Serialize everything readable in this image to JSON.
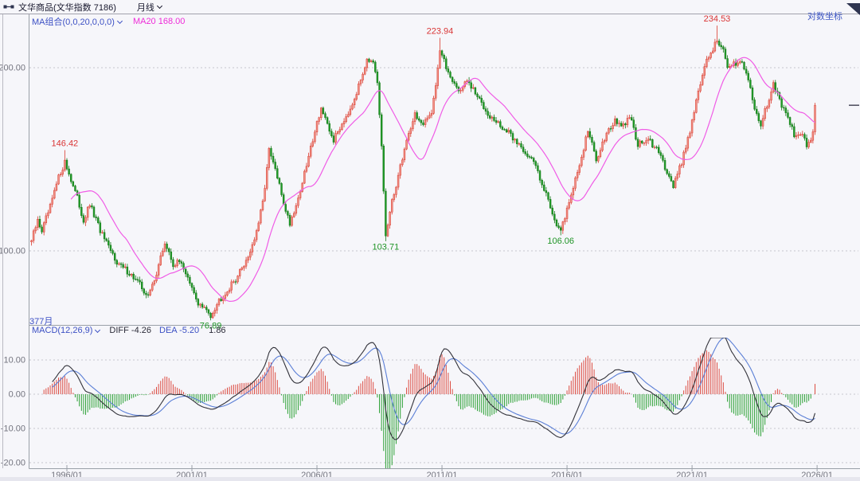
{
  "titlebar": {
    "title": "文华商品(文华指数 7186)",
    "period": "月线"
  },
  "top_right": {
    "scale_label": "对数坐标"
  },
  "main_indicator": {
    "name": "MA组合(0,0,20,0,0,0)",
    "ma20_label": "MA20 168.00"
  },
  "bar_count_label": "377月",
  "macd_row": {
    "name": "MACD(12,26,9)",
    "diff_label": "DIFF -4.26",
    "dea_label": "DEA -5.20",
    "hist_label": "1.86"
  },
  "colors": {
    "up_fill": "#ef9186",
    "up_stroke": "#da3a2e",
    "down_fill": "#1f9c27",
    "down_stroke": "#157718",
    "ma_line": "#f05ce6",
    "diff_line": "#32323a",
    "dea_line": "#5b7fd6",
    "hist_pos": "#dc4b41",
    "hist_neg": "#2aa033",
    "grid": "#c7c7cf",
    "border": "#9aa0a8",
    "tick_text": "#72737e",
    "label_high": "#d93535",
    "label_low": "#1e9425",
    "price_marker": "#4a4a5a"
  },
  "chart_data": {
    "type": "candlestick",
    "symbol": "文华商品(文华指数 7186)",
    "period": "monthly",
    "scale": "log",
    "bars": 377,
    "y_ticks": [
      {
        "value": 200,
        "label": "200.00"
      },
      {
        "value": 100,
        "label": "100.00"
      }
    ],
    "x_ticks": [
      {
        "bar": 17,
        "label": "1996/01"
      },
      {
        "bar": 77,
        "label": "2001/01"
      },
      {
        "bar": 137,
        "label": "2006/01"
      },
      {
        "bar": 197,
        "label": "2011/01"
      },
      {
        "bar": 257,
        "label": "2016/01"
      },
      {
        "bar": 317,
        "label": "2021/01"
      },
      {
        "bar": 377,
        "label": "2026/01"
      }
    ],
    "anchors": [
      [
        0,
        104
      ],
      [
        3,
        112
      ],
      [
        5,
        108
      ],
      [
        9,
        118
      ],
      [
        13,
        132
      ],
      [
        16,
        140
      ],
      [
        19,
        131
      ],
      [
        22,
        122
      ],
      [
        25,
        112
      ],
      [
        28,
        119
      ],
      [
        33,
        108
      ],
      [
        37,
        101
      ],
      [
        42,
        95
      ],
      [
        47,
        92
      ],
      [
        52,
        88
      ],
      [
        56,
        84
      ],
      [
        60,
        92
      ],
      [
        64,
        103
      ],
      [
        68,
        95
      ],
      [
        72,
        96
      ],
      [
        76,
        88
      ],
      [
        80,
        82
      ],
      [
        86,
        78.5
      ],
      [
        90,
        83
      ],
      [
        94,
        86
      ],
      [
        99,
        91
      ],
      [
        104,
        98
      ],
      [
        108,
        107
      ],
      [
        111,
        120
      ],
      [
        114,
        146
      ],
      [
        117,
        136
      ],
      [
        121,
        120
      ],
      [
        124,
        111
      ],
      [
        128,
        122
      ],
      [
        132,
        138
      ],
      [
        136,
        158
      ],
      [
        139,
        172
      ],
      [
        142,
        160
      ],
      [
        145,
        152
      ],
      [
        149,
        162
      ],
      [
        153,
        172
      ],
      [
        157,
        186
      ],
      [
        161,
        208
      ],
      [
        164,
        202
      ],
      [
        166,
        188
      ],
      [
        168,
        148
      ],
      [
        170,
        106
      ],
      [
        173,
        120
      ],
      [
        176,
        133
      ],
      [
        180,
        152
      ],
      [
        184,
        168
      ],
      [
        188,
        160
      ],
      [
        192,
        170
      ],
      [
        194,
        188
      ],
      [
        196,
        214
      ],
      [
        199,
        200
      ],
      [
        205,
        183
      ],
      [
        209,
        190
      ],
      [
        215,
        177
      ],
      [
        221,
        165
      ],
      [
        229,
        156
      ],
      [
        236,
        147
      ],
      [
        242,
        138
      ],
      [
        247,
        124
      ],
      [
        251,
        113
      ],
      [
        254,
        107
      ],
      [
        258,
        121
      ],
      [
        262,
        134
      ],
      [
        267,
        158
      ],
      [
        271,
        141
      ],
      [
        276,
        157
      ],
      [
        280,
        163
      ],
      [
        285,
        160
      ],
      [
        287,
        167
      ],
      [
        291,
        150
      ],
      [
        296,
        152
      ],
      [
        301,
        145
      ],
      [
        306,
        133
      ],
      [
        308,
        128
      ],
      [
        312,
        140
      ],
      [
        316,
        158
      ],
      [
        320,
        183
      ],
      [
        324,
        205
      ],
      [
        329,
        222
      ],
      [
        332,
        215
      ],
      [
        334,
        198
      ],
      [
        338,
        204
      ],
      [
        341,
        206
      ],
      [
        344,
        191
      ],
      [
        348,
        167
      ],
      [
        350,
        161
      ],
      [
        353,
        174
      ],
      [
        356,
        189
      ],
      [
        359,
        176
      ],
      [
        363,
        164
      ],
      [
        367,
        153
      ],
      [
        370,
        156
      ],
      [
        372,
        149
      ],
      [
        374,
        152
      ],
      [
        375,
        158
      ],
      [
        376,
        173.5
      ]
    ],
    "extremes": [
      {
        "bar": 16,
        "price": 146.42,
        "side": "high",
        "label": "146.42"
      },
      {
        "bar": 86,
        "price": 76.89,
        "side": "low",
        "label": "76.89"
      },
      {
        "bar": 170,
        "price": 103.71,
        "side": "low",
        "label": "103.71"
      },
      {
        "bar": 196,
        "price": 223.94,
        "side": "high",
        "label": "223.94"
      },
      {
        "bar": 254,
        "price": 106.06,
        "side": "low",
        "label": "106.06"
      },
      {
        "bar": 329,
        "price": 234.53,
        "side": "high",
        "label": "234.53"
      }
    ],
    "last_close": 173.5,
    "indicators": {
      "ma_period": 20,
      "ma20_current": 168.0,
      "macd": {
        "fast": 12,
        "slow": 26,
        "signal": 9,
        "diff": -4.26,
        "dea": -5.2,
        "hist": 1.86,
        "y_ticks": [
          {
            "value": 10,
            "label": "10.00"
          },
          {
            "value": 0,
            "label": "0.00"
          },
          {
            "value": -10,
            "label": "-10.00"
          },
          {
            "value": -20,
            "label": "-20.00"
          }
        ]
      }
    }
  }
}
